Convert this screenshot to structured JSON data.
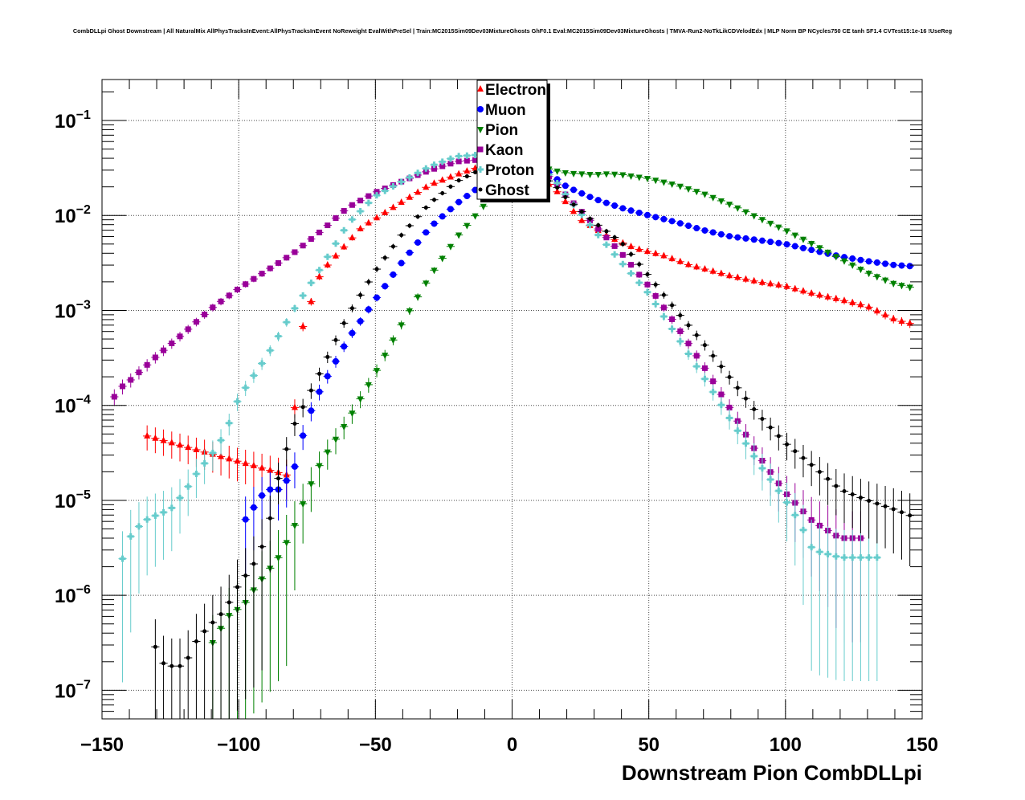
{
  "chart_data": {
    "type": "scatter",
    "title": "CombDLLpi Ghost Downstream | All NaturalMix AllPhysTracksInEvent:AllPhysTracksInEvent NoReweight EvalWithPreSel | Train:MC2015Sim09Dev03MixtureGhosts GhF0.1 Eval:MC2015Sim09Dev03MixtureGhosts | TMVA-Run2-NoTkLikCDVelodEdx | MLP Norm BP NCycles750 CE tanh SF1.4 CVTest15:1e-16 !UseReg",
    "xlabel": "Downstream Pion CombDLLpi",
    "ylabel": "",
    "xlim": [
      -150,
      150
    ],
    "ylim": [
      5e-08,
      0.27
    ],
    "yscale": "log",
    "grid": true,
    "legend_position": "top-center",
    "x_ticks": [
      "−150",
      "−100",
      "−50",
      "0",
      "50",
      "100",
      "150"
    ],
    "y_ticks": [
      {
        "base": "10",
        "exp": "−7",
        "value": 1e-07
      },
      {
        "base": "10",
        "exp": "−6",
        "value": 1e-06
      },
      {
        "base": "10",
        "exp": "−5",
        "value": 1e-05
      },
      {
        "base": "10",
        "exp": "−4",
        "value": 0.0001
      },
      {
        "base": "10",
        "exp": "−3",
        "value": 0.001
      },
      {
        "base": "10",
        "exp": "−2",
        "value": 0.01
      },
      {
        "base": "10",
        "exp": "−1",
        "value": 0.1
      }
    ],
    "series": [
      {
        "name": "Electron",
        "color": "#ff0000",
        "marker": "triangle-up",
        "anchors": [
          [
            -134,
            4.8e-05
          ],
          [
            -81,
            1.8e-05
          ],
          [
            -78,
            0.0005
          ],
          [
            -70,
            0.0025
          ],
          [
            -55,
            0.0075
          ],
          [
            -40,
            0.014
          ],
          [
            -30,
            0.021
          ],
          [
            -20,
            0.027
          ],
          [
            -10,
            0.034
          ],
          [
            -5,
            0.036
          ],
          [
            0,
            0.036
          ],
          [
            5,
            0.03
          ],
          [
            15,
            0.02
          ],
          [
            25,
            0.009
          ],
          [
            35,
            0.006
          ],
          [
            45,
            0.0045
          ],
          [
            55,
            0.0038
          ],
          [
            65,
            0.003
          ],
          [
            80,
            0.0023
          ],
          [
            90,
            0.002
          ],
          [
            100,
            0.0018
          ],
          [
            110,
            0.0015
          ],
          [
            120,
            0.0013
          ],
          [
            130,
            0.0011
          ],
          [
            140,
            0.0008
          ],
          [
            148,
            0.0007
          ]
        ]
      },
      {
        "name": "Muon",
        "color": "#0000ff",
        "marker": "circle",
        "anchors": [
          [
            -98,
            6e-06
          ],
          [
            -90,
            1.3e-05
          ],
          [
            -85,
            1.3e-05
          ],
          [
            -80,
            2e-05
          ],
          [
            -75,
            7e-05
          ],
          [
            -70,
            0.00015
          ],
          [
            -60,
            0.0005
          ],
          [
            -50,
            0.0013
          ],
          [
            -40,
            0.0033
          ],
          [
            -30,
            0.0075
          ],
          [
            -20,
            0.0135
          ],
          [
            -10,
            0.022
          ],
          [
            0,
            0.038
          ],
          [
            5,
            0.042
          ],
          [
            10,
            0.035
          ],
          [
            15,
            0.026
          ],
          [
            20,
            0.02
          ],
          [
            30,
            0.015
          ],
          [
            40,
            0.012
          ],
          [
            50,
            0.01
          ],
          [
            60,
            0.0085
          ],
          [
            70,
            0.007
          ],
          [
            80,
            0.006
          ],
          [
            90,
            0.0055
          ],
          [
            100,
            0.005
          ],
          [
            110,
            0.0043
          ],
          [
            120,
            0.0037
          ],
          [
            130,
            0.0033
          ],
          [
            140,
            0.003
          ],
          [
            148,
            0.0029
          ]
        ]
      },
      {
        "name": "Pion",
        "color": "#008000",
        "marker": "triangle-down",
        "anchors": [
          [
            -110,
            3e-07
          ],
          [
            -104,
            6e-07
          ],
          [
            -98,
            8e-07
          ],
          [
            -94,
            1.2e-06
          ],
          [
            -90,
            1.7e-06
          ],
          [
            -85,
            2.6e-06
          ],
          [
            -80,
            5e-06
          ],
          [
            -75,
            1.2e-05
          ],
          [
            -70,
            2.5e-05
          ],
          [
            -60,
            7e-05
          ],
          [
            -50,
            0.00022
          ],
          [
            -40,
            0.00075
          ],
          [
            -30,
            0.0023
          ],
          [
            -20,
            0.006
          ],
          [
            -10,
            0.013
          ],
          [
            -5,
            0.02
          ],
          [
            0,
            0.03
          ],
          [
            5,
            0.038
          ],
          [
            10,
            0.033
          ],
          [
            15,
            0.03
          ],
          [
            20,
            0.028
          ],
          [
            30,
            0.027
          ],
          [
            35,
            0.0275
          ],
          [
            40,
            0.027
          ],
          [
            50,
            0.0245
          ],
          [
            60,
            0.021
          ],
          [
            70,
            0.017
          ],
          [
            80,
            0.013
          ],
          [
            90,
            0.0095
          ],
          [
            100,
            0.007
          ],
          [
            110,
            0.005
          ],
          [
            120,
            0.0035
          ],
          [
            130,
            0.0025
          ],
          [
            140,
            0.0019
          ],
          [
            148,
            0.0017
          ]
        ]
      },
      {
        "name": "Kaon",
        "color": "#990099",
        "marker": "square",
        "anchors": [
          [
            -148,
            6.5e-05
          ],
          [
            -145,
            0.00014
          ],
          [
            -140,
            0.00018
          ],
          [
            -130,
            0.00033
          ],
          [
            -120,
            0.00058
          ],
          [
            -110,
            0.00105
          ],
          [
            -100,
            0.0017
          ],
          [
            -90,
            0.0026
          ],
          [
            -80,
            0.004
          ],
          [
            -70,
            0.0068
          ],
          [
            -60,
            0.0122
          ],
          [
            -50,
            0.0175
          ],
          [
            -40,
            0.023
          ],
          [
            -30,
            0.03
          ],
          [
            -20,
            0.037
          ],
          [
            -10,
            0.039
          ],
          [
            0,
            0.038
          ],
          [
            5,
            0.035
          ],
          [
            10,
            0.03
          ],
          [
            15,
            0.024
          ],
          [
            20,
            0.016
          ],
          [
            30,
            0.008
          ],
          [
            40,
            0.004
          ],
          [
            50,
            0.0018
          ],
          [
            60,
            0.0007
          ],
          [
            70,
            0.00026
          ],
          [
            80,
            9e-05
          ],
          [
            90,
            3e-05
          ],
          [
            100,
            1.2e-05
          ],
          [
            110,
            6e-06
          ],
          [
            120,
            4e-06
          ],
          [
            130,
            4e-06
          ]
        ]
      },
      {
        "name": "Proton",
        "color": "#66cccc",
        "marker": "cross",
        "anchors": [
          [
            -144,
            1.8e-06
          ],
          [
            -140,
            4e-06
          ],
          [
            -135,
            6e-06
          ],
          [
            -130,
            7e-06
          ],
          [
            -125,
            8e-06
          ],
          [
            -120,
            1.2e-05
          ],
          [
            -115,
            2e-05
          ],
          [
            -110,
            3e-05
          ],
          [
            -105,
            5e-05
          ],
          [
            -100,
            0.00012
          ],
          [
            -90,
            0.00032
          ],
          [
            -80,
            0.001
          ],
          [
            -70,
            0.0028
          ],
          [
            -60,
            0.0082
          ],
          [
            -50,
            0.016
          ],
          [
            -40,
            0.023
          ],
          [
            -30,
            0.033
          ],
          [
            -20,
            0.042
          ],
          [
            -10,
            0.044
          ],
          [
            0,
            0.04
          ],
          [
            5,
            0.037
          ],
          [
            10,
            0.032
          ],
          [
            15,
            0.025
          ],
          [
            20,
            0.016
          ],
          [
            30,
            0.007
          ],
          [
            40,
            0.0032
          ],
          [
            50,
            0.0015
          ],
          [
            60,
            0.00055
          ],
          [
            70,
            0.0002
          ],
          [
            80,
            7e-05
          ],
          [
            90,
            2.5e-05
          ],
          [
            100,
            1e-05
          ],
          [
            105,
            6e-06
          ],
          [
            110,
            3e-06
          ],
          [
            120,
            2.5e-06
          ],
          [
            130,
            2.5e-06
          ],
          [
            134,
            2.5e-06
          ]
        ]
      },
      {
        "name": "Ghost",
        "color": "#000000",
        "marker": "circle",
        "anchors": [
          [
            -132,
            3.5e-07
          ],
          [
            -127,
            1.8e-07
          ],
          [
            -120,
            1.8e-07
          ],
          [
            -115,
            3.5e-07
          ],
          [
            -110,
            5e-07
          ],
          [
            -105,
            7e-07
          ],
          [
            -100,
            1.3e-06
          ],
          [
            -95,
            2e-06
          ],
          [
            -90,
            4e-06
          ],
          [
            -85,
            2e-05
          ],
          [
            -80,
            6e-05
          ],
          [
            -70,
            0.00023
          ],
          [
            -60,
            0.0009
          ],
          [
            -50,
            0.0026
          ],
          [
            -40,
            0.0065
          ],
          [
            -30,
            0.0135
          ],
          [
            -20,
            0.023
          ],
          [
            -10,
            0.032
          ],
          [
            -5,
            0.036
          ],
          [
            0,
            0.035
          ],
          [
            5,
            0.032
          ],
          [
            10,
            0.026
          ],
          [
            15,
            0.022
          ],
          [
            20,
            0.015
          ],
          [
            30,
            0.0085
          ],
          [
            40,
            0.0052
          ],
          [
            50,
            0.0023
          ],
          [
            60,
            0.001
          ],
          [
            70,
            0.00045
          ],
          [
            80,
            0.00019
          ],
          [
            90,
            8e-05
          ],
          [
            100,
            4e-05
          ],
          [
            110,
            2.3e-05
          ],
          [
            120,
            1.3e-05
          ],
          [
            130,
            1e-05
          ],
          [
            140,
            8e-06
          ],
          [
            148,
            6.5e-06
          ]
        ]
      }
    ]
  }
}
